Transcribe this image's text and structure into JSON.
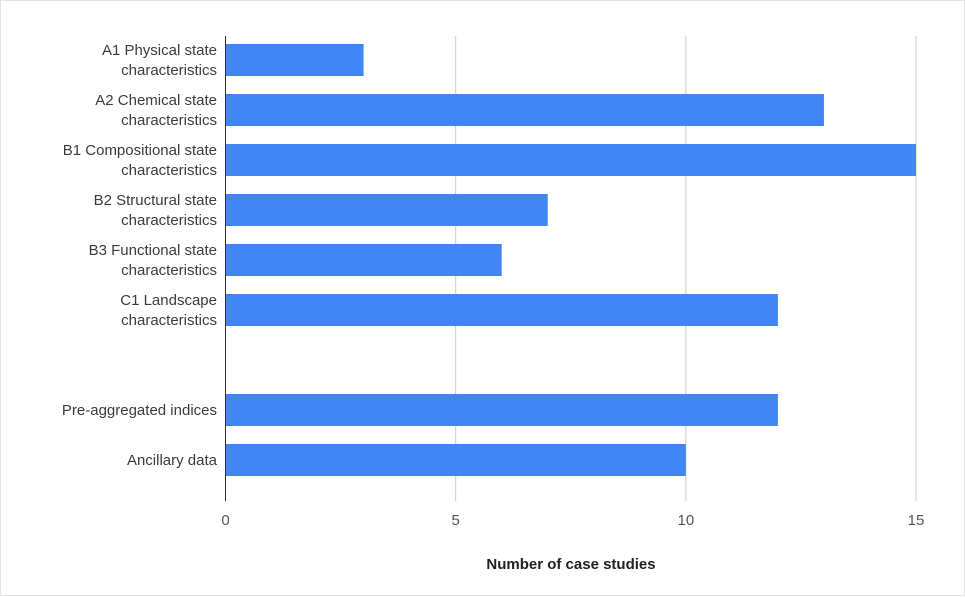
{
  "chart_data": {
    "type": "bar",
    "orientation": "horizontal",
    "categories": [
      [
        "A1 Physical state",
        "characteristics"
      ],
      [
        "A2 Chemical state",
        "characteristics"
      ],
      [
        "B1 Compositional state",
        "characteristics"
      ],
      [
        "B2 Structural state",
        "characteristics"
      ],
      [
        "B3 Functional state",
        "characteristics"
      ],
      [
        "C1 Landscape",
        "characteristics"
      ],
      [
        ""
      ],
      [
        "Pre-aggregated indices"
      ],
      [
        "Ancillary data"
      ]
    ],
    "values": [
      3,
      13,
      15,
      7,
      6,
      12,
      null,
      12,
      10
    ],
    "xlabel": "Number of case studies",
    "ylabel": "",
    "xlim": [
      0,
      15
    ],
    "xticks": [
      0,
      5,
      10,
      15
    ],
    "grid": true,
    "bar_color": "#4285f4"
  }
}
